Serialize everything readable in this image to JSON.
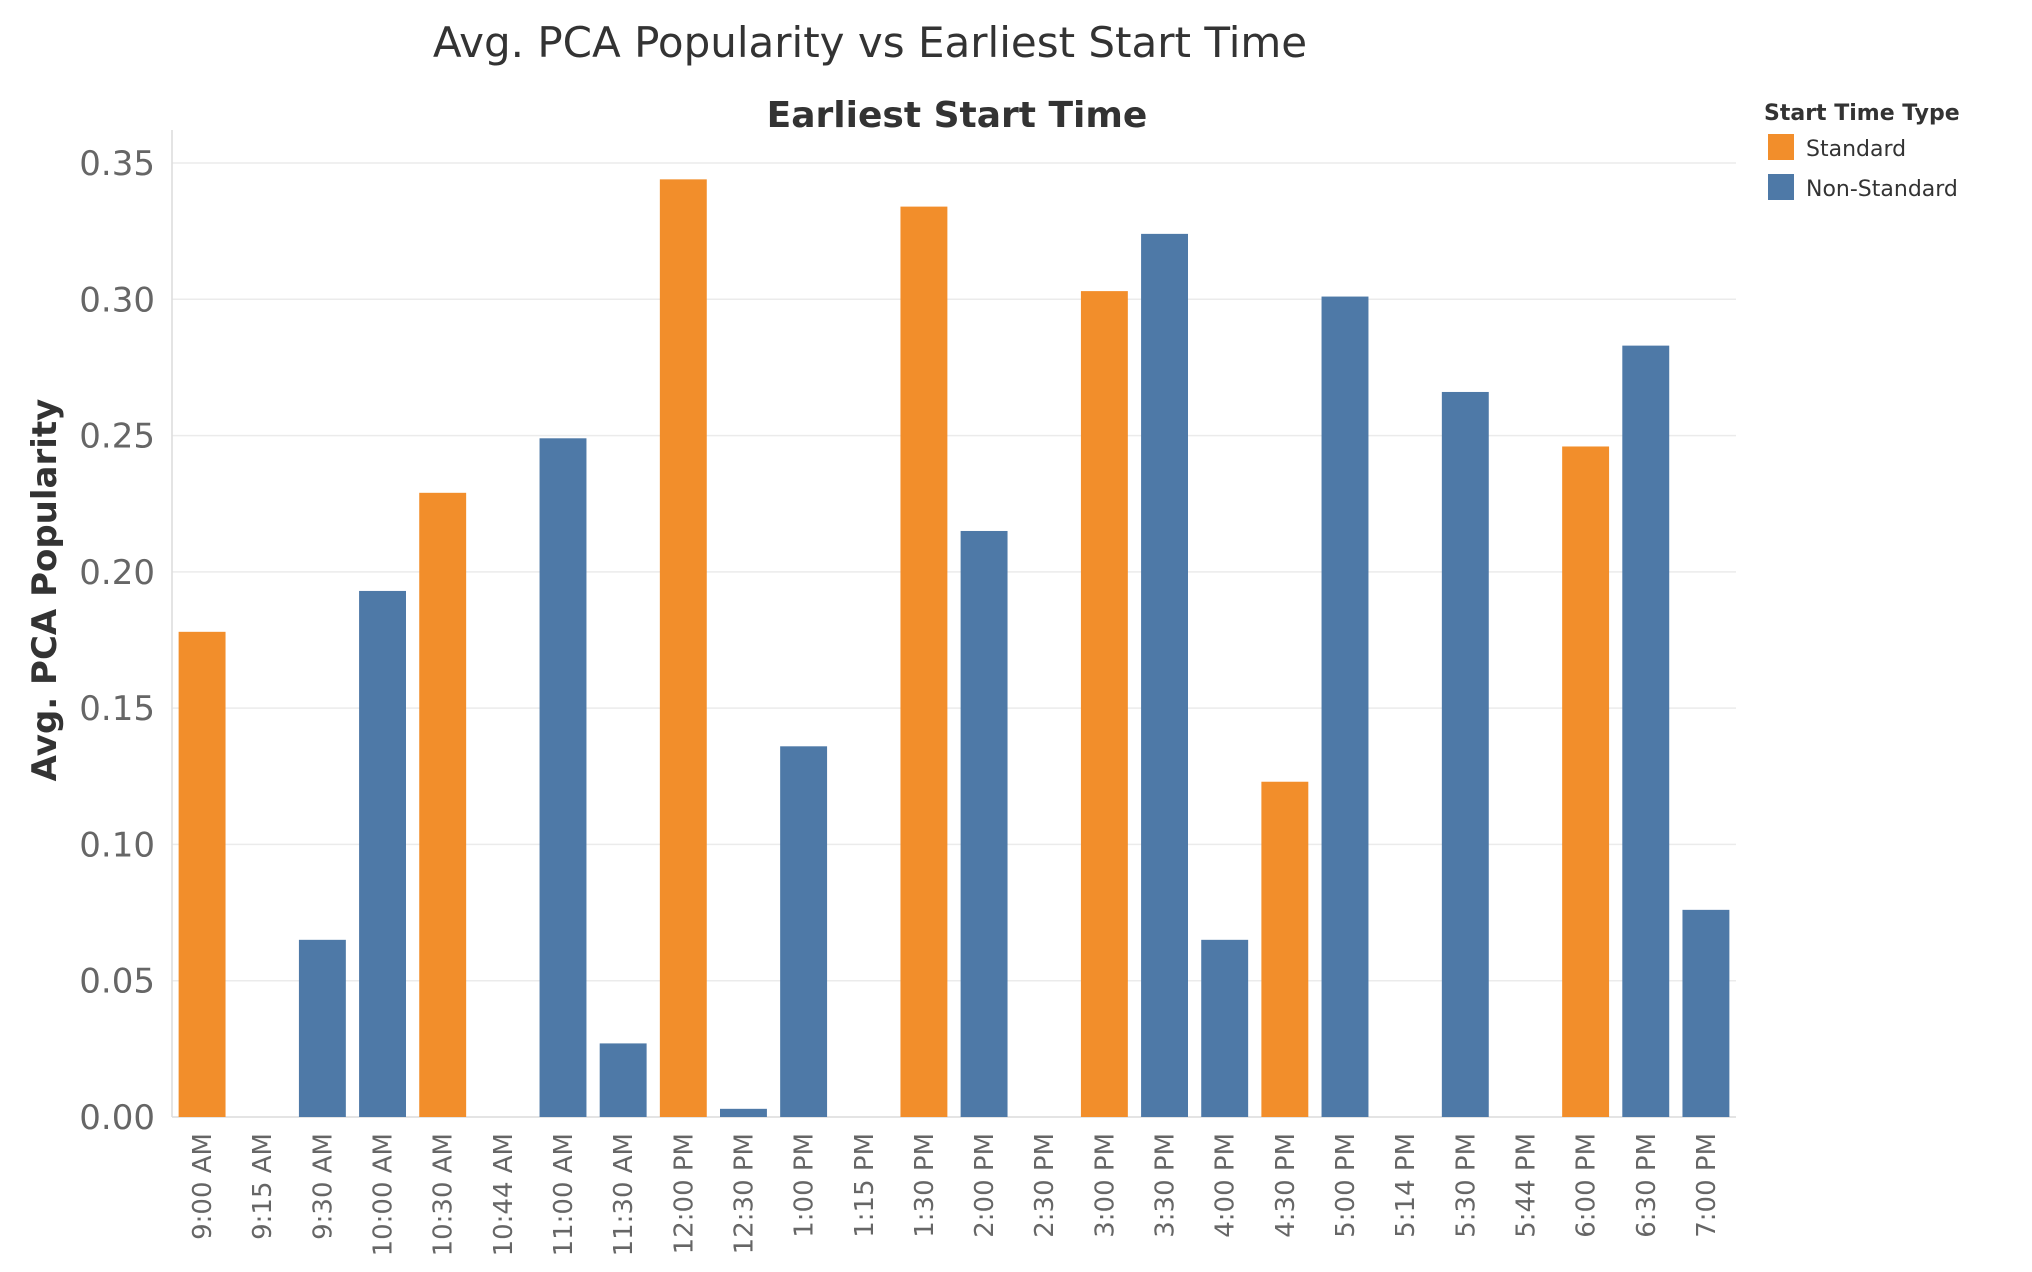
{
  "chart_data": {
    "type": "bar",
    "title": "Avg. PCA Popularity vs Earliest Start Time",
    "xlabel": "Earliest Start Time",
    "ylabel": "Avg. PCA Popularity",
    "ylim": [
      0,
      0.35
    ],
    "yticks": [
      "0.00",
      "0.05",
      "0.10",
      "0.15",
      "0.20",
      "0.25",
      "0.30",
      "0.35"
    ],
    "grid": true,
    "legend": {
      "title": "Start Time Type",
      "placement": "top-right",
      "entries": [
        {
          "name": "Standard",
          "color": "#f28e2b"
        },
        {
          "name": "Non-Standard",
          "color": "#4e79a7"
        }
      ]
    },
    "categories": [
      "9:00 AM",
      "9:15 AM",
      "9:30 AM",
      "10:00 AM",
      "10:30 AM",
      "10:44 AM",
      "11:00 AM",
      "11:30 AM",
      "12:00 PM",
      "12:30 PM",
      "1:00 PM",
      "1:15 PM",
      "1:30 PM",
      "2:00 PM",
      "2:30 PM",
      "3:00 PM",
      "3:30 PM",
      "4:00 PM",
      "4:30 PM",
      "5:00 PM",
      "5:14 PM",
      "5:30 PM",
      "5:44 PM",
      "6:00 PM",
      "6:30 PM",
      "7:00 PM"
    ],
    "values": [
      0.178,
      null,
      0.065,
      0.193,
      0.229,
      null,
      0.249,
      0.027,
      0.344,
      0.003,
      0.136,
      null,
      0.334,
      0.215,
      null,
      0.303,
      0.324,
      0.065,
      0.123,
      0.301,
      null,
      0.266,
      null,
      0.246,
      0.283,
      0.076
    ],
    "types": [
      "Standard",
      null,
      "Non-Standard",
      "Non-Standard",
      "Standard",
      null,
      "Non-Standard",
      "Non-Standard",
      "Standard",
      "Non-Standard",
      "Non-Standard",
      null,
      "Standard",
      "Non-Standard",
      null,
      "Standard",
      "Non-Standard",
      "Non-Standard",
      "Standard",
      "Non-Standard",
      null,
      "Non-Standard",
      null,
      "Standard",
      "Non-Standard",
      "Non-Standard"
    ]
  }
}
